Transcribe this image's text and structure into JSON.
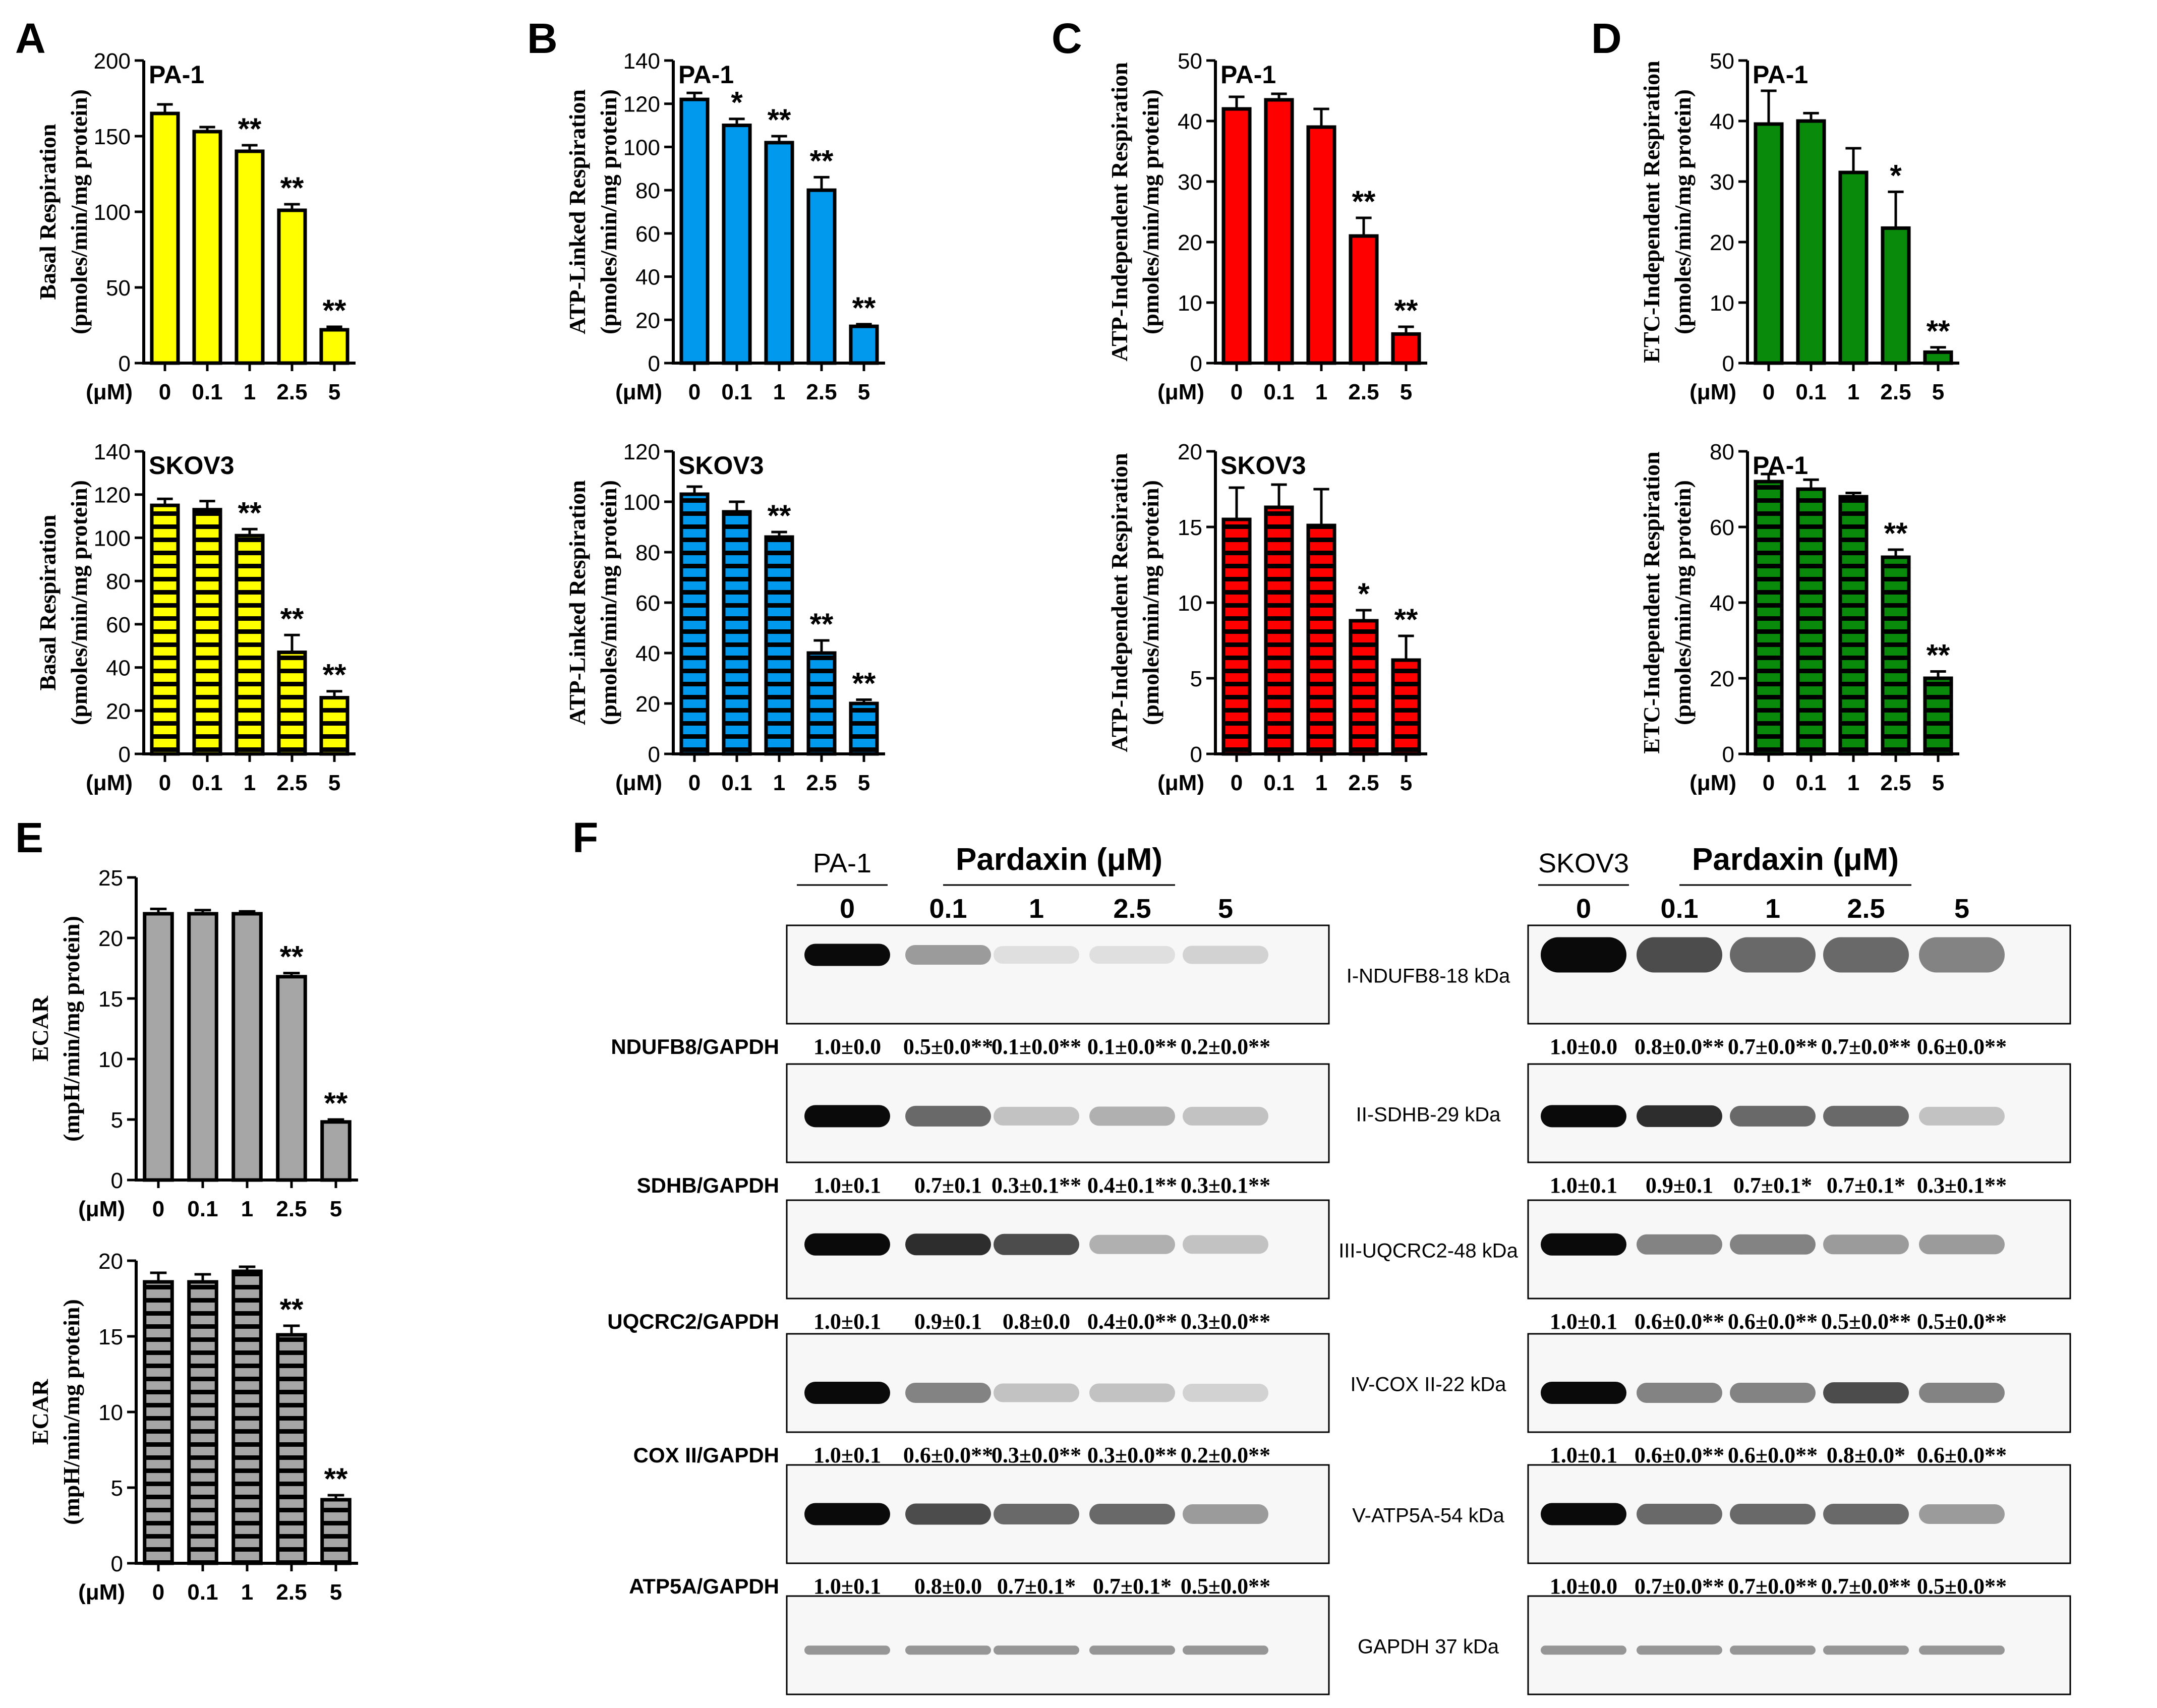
{
  "colors": {
    "yellow": "#ffff00",
    "blue": "#0099ee",
    "red": "#ff0000",
    "green": "#0a8a0a",
    "gray": "#a6a6a6",
    "black": "#000000"
  },
  "unit_label": "(μM)",
  "western_blot": {
    "panel_letter": "F",
    "left": {
      "cell_line": "PA-1",
      "treatment": "Pardaxin (μM)",
      "doses": [
        "0",
        "0.1",
        "1",
        "2.5",
        "5"
      ]
    },
    "right": {
      "cell_line": "SKOV3",
      "treatment": "Pardaxin (μM)",
      "doses": [
        "0",
        "0.1",
        "1",
        "2.5",
        "5"
      ]
    },
    "proteins": [
      {
        "band": "I-NDUFB8-18 kDa",
        "ratio_label": "NDUFB8/GAPDH",
        "left_values": [
          "1.0±0.0",
          "0.5±0.0**",
          "0.1±0.0**",
          "0.1±0.0**",
          "0.2±0.0**"
        ],
        "right_values": [
          "1.0±0.0",
          "0.8±0.0**",
          "0.7±0.0**",
          "0.7±0.0**",
          "0.6±0.0**"
        ]
      },
      {
        "band": "II-SDHB-29 kDa",
        "ratio_label": "SDHB/GAPDH",
        "left_values": [
          "1.0±0.1",
          "0.7±0.1",
          "0.3±0.1**",
          "0.4±0.1**",
          "0.3±0.1**"
        ],
        "right_values": [
          "1.0±0.1",
          "0.9±0.1",
          "0.7±0.1*",
          "0.7±0.1*",
          "0.3±0.1**"
        ]
      },
      {
        "band": "III-UQCRC2-48 kDa",
        "ratio_label": "UQCRC2/GAPDH",
        "left_values": [
          "1.0±0.1",
          "0.9±0.1",
          "0.8±0.0",
          "0.4±0.0**",
          "0.3±0.0**"
        ],
        "right_values": [
          "1.0±0.1",
          "0.6±0.0**",
          "0.6±0.0**",
          "0.5±0.0**",
          "0.5±0.0**"
        ]
      },
      {
        "band": "IV-COX II-22 kDa",
        "ratio_label": "COX II/GAPDH",
        "left_values": [
          "1.0±0.1",
          "0.6±0.0**",
          "0.3±0.0**",
          "0.3±0.0**",
          "0.2±0.0**"
        ],
        "right_values": [
          "1.0±0.1",
          "0.6±0.0**",
          "0.6±0.0**",
          "0.8±0.0*",
          "0.6±0.0**"
        ]
      },
      {
        "band": "V-ATP5A-54 kDa",
        "ratio_label": "ATP5A/GAPDH",
        "left_values": [
          "1.0±0.1",
          "0.8±0.0",
          "0.7±0.1*",
          "0.7±0.1*",
          "0.5±0.0**"
        ],
        "right_values": [
          "1.0±0.0",
          "0.7±0.0**",
          "0.7±0.0**",
          "0.7±0.0**",
          "0.5±0.0**"
        ]
      },
      {
        "band": "GAPDH 37 kDa"
      }
    ],
    "band_intensity": {
      "left": [
        [
          1.0,
          0.5,
          0.1,
          0.1,
          0.2
        ],
        [
          1.0,
          0.7,
          0.3,
          0.4,
          0.3
        ],
        [
          1.0,
          0.9,
          0.8,
          0.4,
          0.3
        ],
        [
          1.0,
          0.6,
          0.3,
          0.3,
          0.2
        ],
        [
          1.0,
          0.8,
          0.7,
          0.7,
          0.5
        ],
        [
          1.0,
          1.0,
          1.0,
          1.0,
          1.0
        ]
      ],
      "right": [
        [
          1.0,
          0.8,
          0.7,
          0.7,
          0.6
        ],
        [
          1.0,
          0.9,
          0.7,
          0.7,
          0.3
        ],
        [
          1.0,
          0.6,
          0.6,
          0.5,
          0.5
        ],
        [
          1.0,
          0.6,
          0.6,
          0.8,
          0.6
        ],
        [
          1.0,
          0.7,
          0.7,
          0.7,
          0.5
        ],
        [
          1.0,
          1.0,
          1.0,
          1.0,
          1.0
        ]
      ]
    }
  },
  "chart_data": [
    {
      "panel": "A",
      "type": "bar",
      "cell_line": "PA-1",
      "pattern": "solid",
      "color": "#ffff00",
      "ylabel": [
        "Basal Respiration",
        "(pmoles/min/mg protein)"
      ],
      "categories": [
        "0",
        "0.1",
        "1",
        "2.5",
        "5"
      ],
      "values": [
        165,
        153,
        140,
        101,
        22
      ],
      "errors": [
        6,
        3,
        4,
        4,
        2
      ],
      "significance": [
        "",
        "",
        "**",
        "**",
        "**"
      ],
      "ylim": [
        0,
        200
      ],
      "yticks": [
        0,
        50,
        100,
        150,
        200
      ]
    },
    {
      "panel": "B",
      "type": "bar",
      "cell_line": "PA-1",
      "pattern": "solid",
      "color": "#0099ee",
      "ylabel": [
        "ATP-Linked Respiration",
        "(pmoles/min/mg protein)"
      ],
      "categories": [
        "0",
        "0.1",
        "1",
        "2.5",
        "5"
      ],
      "values": [
        122,
        110,
        102,
        80,
        17
      ],
      "errors": [
        3,
        3,
        3,
        6,
        1
      ],
      "significance": [
        "",
        "*",
        "**",
        "**",
        "**"
      ],
      "ylim": [
        0,
        140
      ],
      "yticks": [
        0,
        20,
        40,
        60,
        80,
        100,
        120,
        140
      ]
    },
    {
      "panel": "C",
      "type": "bar",
      "cell_line": "PA-1",
      "pattern": "solid",
      "color": "#ff0000",
      "ylabel": [
        "ATP-Independent Respiration",
        "(pmoles/min/mg protein)"
      ],
      "categories": [
        "0",
        "0.1",
        "1",
        "2.5",
        "5"
      ],
      "values": [
        42,
        43.5,
        39,
        21,
        4.8
      ],
      "errors": [
        2,
        1,
        3,
        3,
        1.2
      ],
      "significance": [
        "",
        "",
        "",
        "**",
        "**"
      ],
      "ylim": [
        0,
        50
      ],
      "yticks": [
        0,
        10,
        20,
        30,
        40,
        50
      ]
    },
    {
      "panel": "D",
      "type": "bar",
      "cell_line": "PA-1",
      "pattern": "solid",
      "color": "#0a8a0a",
      "ylabel": [
        "ETC-Independent Respiration",
        "(pmoles/min/mg protein)"
      ],
      "categories": [
        "0",
        "0.1",
        "1",
        "2.5",
        "5"
      ],
      "values": [
        39.5,
        40,
        31.5,
        22.3,
        1.8
      ],
      "errors": [
        5.5,
        1.3,
        4,
        6,
        0.8
      ],
      "significance": [
        "",
        "",
        "",
        "*",
        "**"
      ],
      "ylim": [
        0,
        50
      ],
      "yticks": [
        0,
        10,
        20,
        30,
        40,
        50
      ]
    },
    {
      "panel": "A",
      "type": "bar",
      "cell_line": "SKOV3",
      "pattern": "striped",
      "color": "#ffff00",
      "ylabel": [
        "Basal Respiration",
        "(pmoles/min/mg protein)"
      ],
      "categories": [
        "0",
        "0.1",
        "1",
        "2.5",
        "5"
      ],
      "values": [
        115,
        113,
        101,
        47,
        26
      ],
      "errors": [
        3,
        4,
        3,
        8,
        3
      ],
      "significance": [
        "",
        "",
        "**",
        "**",
        "**"
      ],
      "ylim": [
        0,
        140
      ],
      "yticks": [
        0,
        20,
        40,
        60,
        80,
        100,
        120,
        140
      ]
    },
    {
      "panel": "B",
      "type": "bar",
      "cell_line": "SKOV3",
      "pattern": "striped",
      "color": "#0099ee",
      "ylabel": [
        "ATP-Linked Respiration",
        "(pmoles/min/mg protein)"
      ],
      "categories": [
        "0",
        "0.1",
        "1",
        "2.5",
        "5"
      ],
      "values": [
        103,
        96,
        86,
        40,
        20
      ],
      "errors": [
        3,
        4,
        2,
        5,
        1.5
      ],
      "significance": [
        "",
        "",
        "**",
        "**",
        "**"
      ],
      "ylim": [
        0,
        120
      ],
      "yticks": [
        0,
        20,
        40,
        60,
        80,
        100,
        120
      ]
    },
    {
      "panel": "C",
      "type": "bar",
      "cell_line": "SKOV3",
      "pattern": "striped",
      "color": "#ff0000",
      "ylabel": [
        "ATP-Independent Respiration",
        "(pmoles/min/mg protein)"
      ],
      "categories": [
        "0",
        "0.1",
        "1",
        "2.5",
        "5"
      ],
      "values": [
        15.5,
        16.3,
        15.1,
        8.8,
        6.2
      ],
      "errors": [
        2.1,
        1.5,
        2.4,
        0.7,
        1.6
      ],
      "significance": [
        "",
        "",
        "",
        "*",
        "**"
      ],
      "ylim": [
        0,
        20
      ],
      "yticks": [
        0,
        5,
        10,
        15,
        20
      ]
    },
    {
      "panel": "D",
      "type": "bar",
      "cell_line": "PA-1",
      "pattern": "striped",
      "color": "#0a8a0a",
      "ylabel": [
        "ETC-Independent Respiration",
        "(pmoles/min/mg protein)"
      ],
      "categories": [
        "0",
        "0.1",
        "1",
        "2.5",
        "5"
      ],
      "values": [
        72,
        70,
        68,
        52,
        20
      ],
      "errors": [
        2,
        2.5,
        1,
        2,
        1.8
      ],
      "significance": [
        "",
        "",
        "",
        "**",
        "**"
      ],
      "ylim": [
        0,
        80
      ],
      "yticks": [
        0,
        20,
        40,
        60,
        80
      ]
    },
    {
      "panel": "E",
      "type": "bar",
      "cell_line": "",
      "pattern": "solid",
      "color": "#a6a6a6",
      "ylabel": [
        "ECAR",
        "(mpH/min/mg protein)"
      ],
      "categories": [
        "0",
        "0.1",
        "1",
        "2.5",
        "5"
      ],
      "values": [
        22,
        22,
        22,
        16.8,
        4.8
      ],
      "errors": [
        0.4,
        0.3,
        0.2,
        0.3,
        0.2
      ],
      "significance": [
        "",
        "",
        "",
        "**",
        "**"
      ],
      "ylim": [
        0,
        25
      ],
      "yticks": [
        0,
        5,
        10,
        15,
        20,
        25
      ]
    },
    {
      "panel": "",
      "type": "bar",
      "cell_line": "",
      "pattern": "striped",
      "color": "#a6a6a6",
      "ylabel": [
        "ECAR",
        "(mpH/min/mg protein)"
      ],
      "categories": [
        "0",
        "0.1",
        "1",
        "2.5",
        "5"
      ],
      "values": [
        18.6,
        18.6,
        19.3,
        15.1,
        4.2
      ],
      "errors": [
        0.6,
        0.5,
        0.3,
        0.6,
        0.3
      ],
      "significance": [
        "",
        "",
        "",
        "**",
        "**"
      ],
      "ylim": [
        0,
        20
      ],
      "yticks": [
        0,
        5,
        10,
        15,
        20
      ]
    }
  ]
}
